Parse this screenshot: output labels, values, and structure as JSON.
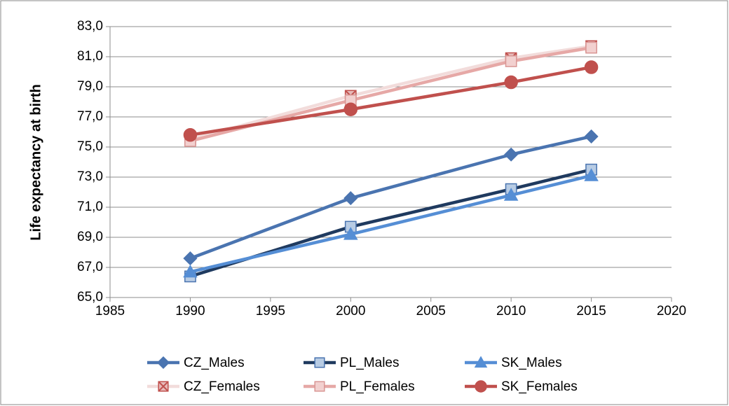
{
  "chart_data": {
    "type": "line",
    "y_label": "Life expectancy at birth",
    "x": [
      1990,
      2000,
      2010,
      2015
    ],
    "xlim": [
      1985,
      2020
    ],
    "xticks": [
      1985,
      1990,
      1995,
      2000,
      2005,
      2010,
      2015,
      2020
    ],
    "ylim": [
      65,
      83
    ],
    "yticks": [
      {
        "value": 65,
        "label": "65,0"
      },
      {
        "value": 67,
        "label": "67,0"
      },
      {
        "value": 69,
        "label": "69,0"
      },
      {
        "value": 71,
        "label": "71,0"
      },
      {
        "value": 73,
        "label": "73,0"
      },
      {
        "value": 75,
        "label": "75,0"
      },
      {
        "value": 77,
        "label": "77,0"
      },
      {
        "value": 79,
        "label": "79,0"
      },
      {
        "value": 81,
        "label": "81,0"
      },
      {
        "value": 83,
        "label": "83,0"
      }
    ],
    "grid": true,
    "legend": "bottom",
    "series": [
      {
        "name": "CZ_Males",
        "color": "#4a74b0",
        "marker": "diamond",
        "marker_fill": "#4a74b0",
        "marker_stroke": "#4a74b0",
        "values": [
          67.6,
          71.6,
          74.5,
          75.7
        ]
      },
      {
        "name": "PL_Males",
        "color": "#1f3a5f",
        "marker": "square",
        "marker_fill": "#b8cce4",
        "marker_stroke": "#4a74b0",
        "values": [
          66.4,
          69.7,
          72.2,
          73.5
        ]
      },
      {
        "name": "SK_Males",
        "color": "#558ed5",
        "marker": "triangle",
        "marker_fill": "#558ed5",
        "marker_stroke": "#558ed5",
        "values": [
          66.7,
          69.2,
          71.8,
          73.1
        ]
      },
      {
        "name": "CZ_Females",
        "color": "#f2dcdb",
        "marker": "x-square",
        "marker_fill": "#e6b9b8",
        "marker_stroke": "#c0504d",
        "values": [
          75.5,
          78.4,
          80.9,
          81.7
        ]
      },
      {
        "name": "PL_Females",
        "color": "#e6a8a6",
        "marker": "square",
        "marker_fill": "#f2d0cf",
        "marker_stroke": "#d99694",
        "values": [
          75.4,
          78.1,
          80.7,
          81.6
        ]
      },
      {
        "name": "SK_Females",
        "color": "#c0504d",
        "marker": "circle",
        "marker_fill": "#c0504d",
        "marker_stroke": "#c0504d",
        "values": [
          75.8,
          77.5,
          79.3,
          80.3
        ]
      }
    ]
  }
}
